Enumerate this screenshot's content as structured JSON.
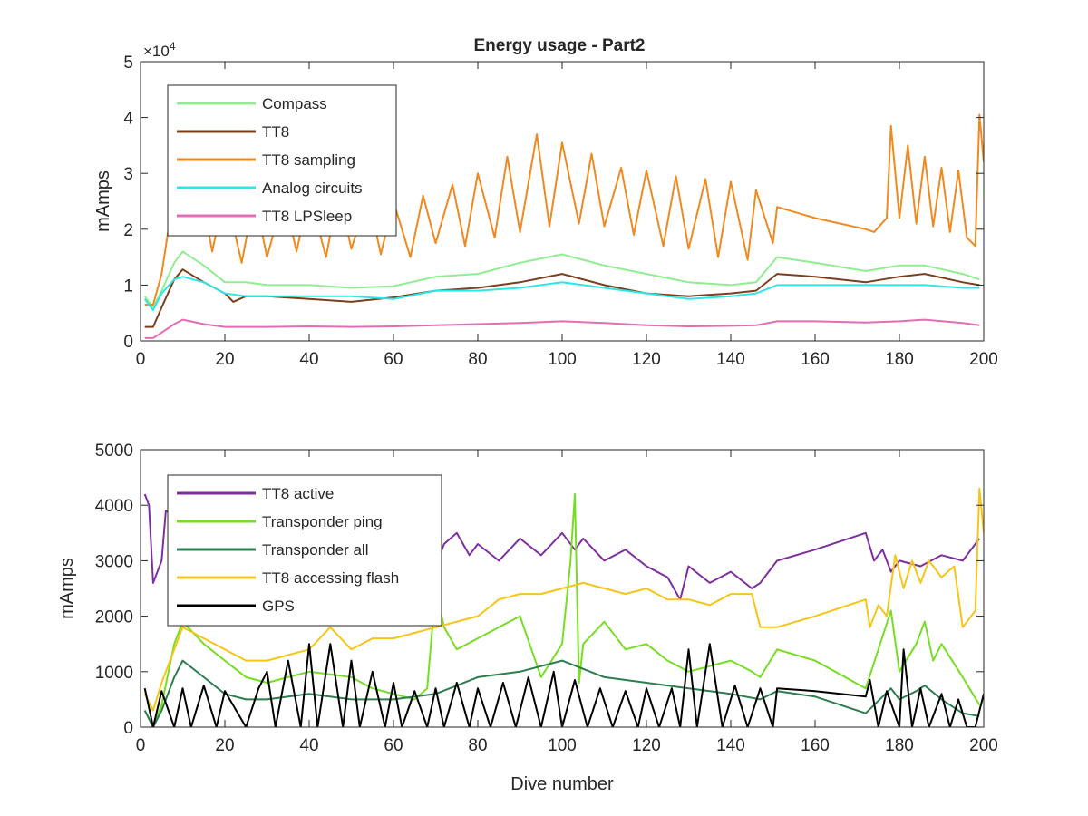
{
  "figure": {
    "title": "Energy usage - Part2"
  },
  "chart_data": [
    {
      "type": "line",
      "title": "Energy usage - Part2",
      "xlabel": "",
      "ylabel": "mAmps",
      "exponent_label": "×10",
      "exponent_power": "4",
      "xlim": [
        0,
        200
      ],
      "ylim": [
        0,
        50000
      ],
      "xticks": [
        0,
        20,
        40,
        60,
        80,
        100,
        120,
        140,
        160,
        180,
        200
      ],
      "yticks": [
        0,
        10000,
        20000,
        30000,
        40000,
        50000
      ],
      "ytick_labels": [
        "0",
        "1",
        "2",
        "3",
        "4",
        "5"
      ],
      "legend_position": "top-left",
      "grid": false,
      "series": [
        {
          "name": "Compass",
          "color": "#90EE90",
          "x": [
            1,
            3,
            5,
            8,
            10,
            15,
            20,
            25,
            30,
            40,
            50,
            60,
            70,
            80,
            90,
            100,
            110,
            120,
            130,
            140,
            146,
            151,
            160,
            172,
            180,
            186,
            195,
            199
          ],
          "y": [
            8000,
            6000,
            9000,
            14000,
            16000,
            13500,
            10500,
            10500,
            10000,
            10000,
            9500,
            9800,
            11500,
            12000,
            14000,
            15500,
            13500,
            12000,
            10500,
            10000,
            10500,
            15000,
            14000,
            12500,
            13500,
            13500,
            12000,
            11000
          ]
        },
        {
          "name": "TT8",
          "color": "#7B3F1D",
          "x": [
            1,
            3,
            5,
            8,
            10,
            15,
            20,
            22,
            25,
            30,
            40,
            50,
            60,
            70,
            80,
            90,
            100,
            110,
            120,
            130,
            140,
            146,
            151,
            160,
            172,
            180,
            186,
            195,
            199
          ],
          "y": [
            2500,
            2500,
            6000,
            11000,
            12800,
            10500,
            8500,
            7000,
            8000,
            8000,
            7500,
            7000,
            7800,
            9000,
            9500,
            10500,
            12000,
            10000,
            8500,
            8000,
            8500,
            9000,
            12000,
            11500,
            10500,
            11500,
            12000,
            10500,
            10000
          ]
        },
        {
          "name": "TT8 sampling",
          "color": "#EE8A1F",
          "x": [
            1,
            3,
            5,
            7,
            10,
            14,
            17,
            20,
            24,
            27,
            30,
            34,
            37,
            40,
            44,
            47,
            50,
            54,
            57,
            60,
            64,
            67,
            70,
            74,
            77,
            80,
            84,
            87,
            90,
            94,
            97,
            100,
            104,
            107,
            110,
            114,
            117,
            120,
            124,
            127,
            130,
            134,
            137,
            140,
            144,
            146,
            150,
            151,
            160,
            172,
            174,
            177,
            178,
            180,
            182,
            184,
            186,
            188,
            190,
            192,
            194,
            196,
            198,
            199,
            200
          ],
          "y": [
            6500,
            6500,
            12000,
            22000,
            23500,
            28000,
            16000,
            27000,
            14000,
            26000,
            15000,
            26000,
            16000,
            26500,
            15000,
            27000,
            16500,
            26000,
            15500,
            25000,
            15000,
            26000,
            17500,
            28000,
            17000,
            30000,
            18500,
            33000,
            19500,
            37000,
            20500,
            35500,
            21000,
            33500,
            20500,
            31000,
            19000,
            30500,
            17000,
            29500,
            16500,
            29000,
            15000,
            28500,
            14500,
            27000,
            17500,
            24000,
            22000,
            20000,
            19500,
            22000,
            38500,
            22000,
            35000,
            21000,
            33000,
            20500,
            31000,
            19500,
            30500,
            18500,
            17000,
            40500,
            32000
          ]
        },
        {
          "name": "Analog circuits",
          "color": "#2EE6E6",
          "x": [
            1,
            3,
            5,
            8,
            10,
            15,
            20,
            25,
            30,
            40,
            50,
            60,
            70,
            80,
            90,
            100,
            110,
            120,
            130,
            140,
            146,
            151,
            160,
            172,
            180,
            186,
            195,
            199
          ],
          "y": [
            7500,
            5500,
            8500,
            11000,
            11500,
            10500,
            8500,
            8000,
            8000,
            8000,
            8000,
            7500,
            9000,
            9000,
            9500,
            10500,
            9500,
            8500,
            7500,
            8000,
            8500,
            10000,
            10000,
            10000,
            10000,
            10000,
            9500,
            9500
          ]
        },
        {
          "name": "TT8 LPSleep",
          "color": "#E36DB4",
          "x": [
            1,
            3,
            5,
            8,
            10,
            15,
            20,
            30,
            40,
            50,
            60,
            70,
            80,
            90,
            100,
            110,
            120,
            130,
            140,
            146,
            151,
            160,
            172,
            180,
            186,
            195,
            199
          ],
          "y": [
            500,
            500,
            1500,
            3000,
            3800,
            3000,
            2500,
            2500,
            2600,
            2500,
            2600,
            2800,
            3000,
            3200,
            3500,
            3200,
            2800,
            2600,
            2700,
            2800,
            3500,
            3500,
            3300,
            3500,
            3800,
            3200,
            2800
          ]
        }
      ]
    },
    {
      "type": "line",
      "title": "",
      "xlabel": "Dive number",
      "ylabel": "mAmps",
      "xlim": [
        0,
        200
      ],
      "ylim": [
        0,
        5000
      ],
      "xticks": [
        0,
        20,
        40,
        60,
        80,
        100,
        120,
        140,
        160,
        180,
        200
      ],
      "yticks": [
        0,
        1000,
        2000,
        3000,
        4000,
        5000
      ],
      "ytick_labels": [
        "0",
        "1000",
        "2000",
        "3000",
        "4000",
        "5000"
      ],
      "legend_position": "top-left",
      "grid": false,
      "series": [
        {
          "name": "TT8 active",
          "color": "#7E2F9E",
          "x": [
            1,
            2,
            3,
            5,
            6,
            8,
            10,
            20,
            30,
            40,
            50,
            60,
            66,
            70,
            72,
            75,
            78,
            80,
            85,
            90,
            95,
            100,
            103,
            105,
            110,
            115,
            120,
            125,
            128,
            130,
            135,
            140,
            145,
            147,
            151,
            160,
            172,
            174,
            176,
            178,
            180,
            185,
            190,
            195,
            199
          ],
          "y": [
            4200,
            4000,
            2600,
            3000,
            3900,
            3800,
            3600,
            3700,
            3500,
            3200,
            3000,
            2800,
            2500,
            2900,
            3300,
            3500,
            3100,
            3300,
            3000,
            3400,
            3100,
            3500,
            3200,
            3400,
            3000,
            3200,
            2900,
            2700,
            2300,
            2900,
            2600,
            2800,
            2500,
            2600,
            3000,
            3200,
            3500,
            3000,
            3200,
            2800,
            3000,
            2900,
            3100,
            3000,
            3400
          ]
        },
        {
          "name": "Transponder ping",
          "color": "#77DD22",
          "x": [
            1,
            3,
            5,
            8,
            10,
            15,
            20,
            25,
            30,
            40,
            50,
            55,
            60,
            65,
            68,
            70,
            72,
            75,
            80,
            85,
            90,
            95,
            100,
            102,
            103,
            104,
            105,
            110,
            115,
            120,
            125,
            130,
            135,
            140,
            145,
            147,
            151,
            160,
            172,
            178,
            180,
            184,
            186,
            188,
            190,
            195,
            199
          ],
          "y": [
            300,
            0,
            400,
            1500,
            1900,
            1500,
            1200,
            900,
            800,
            1000,
            900,
            700,
            600,
            500,
            700,
            2500,
            1800,
            1400,
            1600,
            1800,
            2000,
            900,
            1500,
            3000,
            4200,
            800,
            1500,
            1900,
            1400,
            1500,
            1200,
            1000,
            1100,
            1200,
            1000,
            900,
            1400,
            1200,
            700,
            2100,
            1000,
            1500,
            1900,
            1200,
            1500,
            900,
            400
          ]
        },
        {
          "name": "Transponder all",
          "color": "#2E7D50",
          "x": [
            1,
            3,
            5,
            8,
            10,
            15,
            20,
            25,
            30,
            40,
            50,
            60,
            70,
            80,
            90,
            100,
            110,
            120,
            130,
            140,
            147,
            151,
            160,
            172,
            178,
            180,
            184,
            186,
            190,
            195,
            199
          ],
          "y": [
            300,
            0,
            300,
            900,
            1200,
            900,
            600,
            500,
            500,
            600,
            500,
            500,
            600,
            900,
            1000,
            1200,
            900,
            800,
            700,
            600,
            500,
            650,
            550,
            250,
            700,
            500,
            650,
            750,
            500,
            250,
            200
          ]
        },
        {
          "name": "TT8 accessing flash",
          "color": "#F5C518",
          "x": [
            1,
            3,
            5,
            8,
            10,
            15,
            20,
            25,
            30,
            40,
            45,
            50,
            55,
            60,
            65,
            70,
            75,
            80,
            85,
            90,
            95,
            100,
            105,
            110,
            115,
            120,
            125,
            130,
            135,
            140,
            145,
            147,
            151,
            160,
            172,
            173,
            175,
            177,
            179,
            181,
            183,
            185,
            187,
            190,
            193,
            195,
            198,
            199,
            200
          ],
          "y": [
            600,
            300,
            800,
            1400,
            1800,
            1600,
            1400,
            1200,
            1200,
            1400,
            1800,
            1400,
            1600,
            1600,
            1700,
            1800,
            1900,
            2000,
            2300,
            2400,
            2400,
            2500,
            2600,
            2500,
            2400,
            2500,
            2300,
            2300,
            2200,
            2400,
            2400,
            1800,
            1800,
            2000,
            2300,
            1800,
            2200,
            2000,
            3100,
            2500,
            3000,
            2600,
            3000,
            2700,
            2900,
            1800,
            2100,
            4300,
            3500
          ]
        },
        {
          "name": "GPS",
          "color": "#000000",
          "x": [
            1,
            3,
            5,
            8,
            10,
            12,
            15,
            18,
            20,
            25,
            28,
            30,
            32,
            35,
            38,
            40,
            42,
            45,
            48,
            50,
            52,
            55,
            58,
            60,
            62,
            65,
            68,
            70,
            72,
            75,
            78,
            80,
            83,
            86,
            89,
            92,
            95,
            98,
            100,
            103,
            106,
            109,
            112,
            115,
            118,
            120,
            123,
            126,
            128,
            130,
            132,
            135,
            138,
            141,
            144,
            147,
            150,
            151,
            160,
            172,
            173,
            175,
            177,
            180,
            181,
            183,
            185,
            187,
            190,
            192,
            194,
            196,
            198,
            200
          ],
          "y": [
            700,
            0,
            650,
            0,
            700,
            0,
            750,
            0,
            650,
            0,
            700,
            1000,
            0,
            1200,
            0,
            1500,
            0,
            1500,
            0,
            1200,
            0,
            1000,
            0,
            800,
            0,
            650,
            0,
            700,
            0,
            800,
            0,
            700,
            0,
            800,
            0,
            900,
            0,
            1000,
            0,
            850,
            0,
            700,
            0,
            650,
            0,
            700,
            0,
            700,
            0,
            1400,
            0,
            1500,
            0,
            750,
            0,
            700,
            0,
            700,
            650,
            550,
            850,
            0,
            650,
            0,
            1400,
            0,
            700,
            0,
            600,
            0,
            500,
            0,
            0,
            600
          ]
        }
      ]
    }
  ]
}
